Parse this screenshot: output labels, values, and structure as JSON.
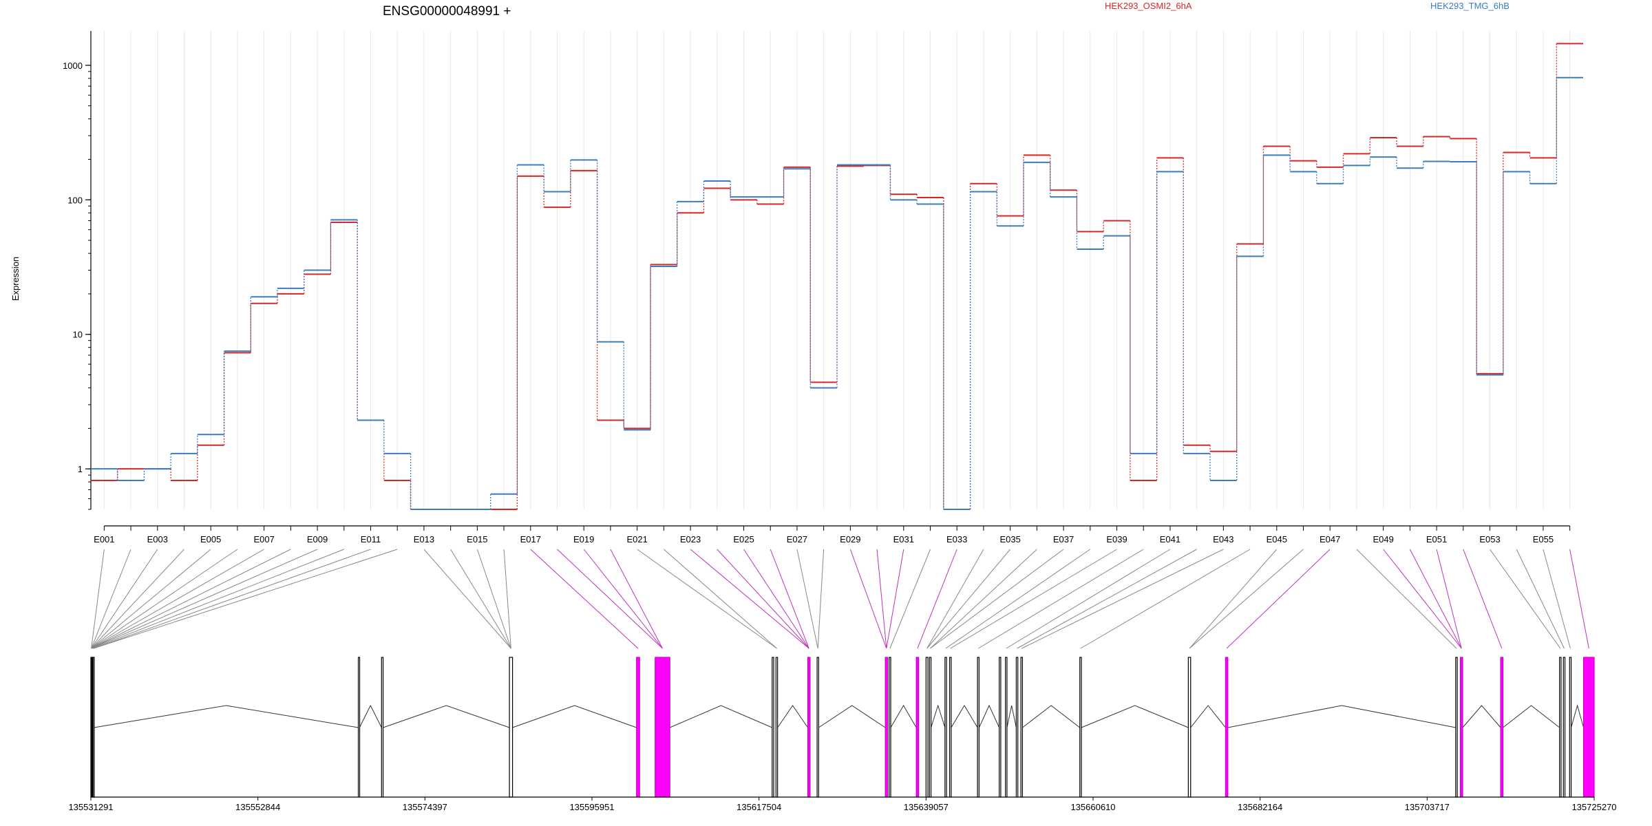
{
  "chart_data": {
    "type": "line",
    "title": "ENSG00000048991 +",
    "ylabel": "Expression",
    "yscale": "log",
    "ylim": [
      0.5,
      1800
    ],
    "yticks": [
      1,
      10,
      100,
      1000
    ],
    "ytick_labels": [
      "1",
      "10",
      "100",
      "1000"
    ],
    "legend_placement": "top",
    "categories": [
      "E001",
      "E002",
      "E003",
      "E004",
      "E005",
      "E006",
      "E007",
      "E008",
      "E009",
      "E010",
      "E011",
      "E012",
      "E013",
      "E014",
      "E015",
      "E016",
      "E017",
      "E018",
      "E019",
      "E020",
      "E021",
      "E022",
      "E023",
      "E024",
      "E025",
      "E026",
      "E027",
      "E028",
      "E029",
      "E030",
      "E031",
      "E032",
      "E033",
      "E034",
      "E035",
      "E036",
      "E037",
      "E038",
      "E039",
      "E040",
      "E041",
      "E042",
      "E043",
      "E044",
      "E045",
      "E046",
      "E047",
      "E048",
      "E049",
      "E050",
      "E051",
      "E052",
      "E053",
      "E054",
      "E055",
      "E056"
    ],
    "xtick_labels": [
      "E001",
      "E003",
      "E005",
      "E007",
      "E009",
      "E011",
      "E013",
      "E015",
      "E017",
      "E019",
      "E021",
      "E023",
      "E025",
      "E027",
      "E029",
      "E031",
      "E033",
      "E035",
      "E037",
      "E039",
      "E041",
      "E043",
      "E045",
      "E047",
      "E049",
      "E051",
      "E053",
      "E055"
    ],
    "series": [
      {
        "name": "HEK293_OSMI2_6hA",
        "color": "#d62728",
        "values": [
          0.82,
          1.0,
          1.0,
          0.82,
          1.5,
          7.3,
          17,
          20,
          28,
          68,
          2.3,
          0.82,
          0.5,
          0.5,
          0.5,
          0.5,
          150,
          88,
          165,
          2.3,
          2.0,
          33,
          80,
          122,
          100,
          93,
          175,
          4.4,
          178,
          180,
          110,
          104,
          0.5,
          132,
          76,
          215,
          118,
          58,
          70,
          0.82,
          205,
          1.5,
          1.35,
          47,
          250,
          195,
          175,
          220,
          290,
          250,
          295,
          285,
          5.1,
          225,
          205,
          1450
        ]
      },
      {
        "name": "HEK293_TMG_6hB",
        "color": "#3a7dbf",
        "values": [
          1.0,
          0.82,
          1.0,
          1.3,
          1.8,
          7.5,
          19,
          22,
          30,
          71,
          2.3,
          1.3,
          0.5,
          0.5,
          0.5,
          0.65,
          182,
          115,
          198,
          8.8,
          1.95,
          32,
          97,
          138,
          105,
          105,
          170,
          4.0,
          182,
          182,
          100,
          93,
          0.5,
          115,
          64,
          190,
          105,
          43,
          54,
          1.3,
          162,
          1.3,
          0.82,
          38,
          215,
          162,
          132,
          180,
          208,
          172,
          193,
          192,
          5.0,
          162,
          132,
          810
        ]
      }
    ],
    "genome_ticks": [
      "135531291",
      "135552844",
      "135574397",
      "135595951",
      "135617504",
      "135639057",
      "135660610",
      "135682164",
      "135703717",
      "135725270"
    ],
    "gene_model": {
      "coord_range": [
        135531291,
        135725270
      ],
      "exon_bins": [
        {
          "s": 135531291,
          "e": 135531400,
          "d": 0
        },
        {
          "s": 135531400,
          "e": 135531550,
          "d": 0
        },
        {
          "s": 135531550,
          "e": 135531700,
          "d": 0
        },
        {
          "s": 135565800,
          "e": 135565950,
          "d": 0
        },
        {
          "s": 135568800,
          "e": 135569000,
          "d": 0
        },
        {
          "s": 135585300,
          "e": 135585700,
          "d": 0
        },
        {
          "s": 135601700,
          "e": 135602100,
          "d": 1
        },
        {
          "s": 135604100,
          "e": 135606000,
          "d": 1
        },
        {
          "s": 135619200,
          "e": 135619400,
          "d": 0
        },
        {
          "s": 135619700,
          "e": 135619900,
          "d": 0
        },
        {
          "s": 135623800,
          "e": 135624100,
          "d": 1
        },
        {
          "s": 135625000,
          "e": 135625200,
          "d": 0
        },
        {
          "s": 135633800,
          "e": 135634100,
          "d": 1
        },
        {
          "s": 135634300,
          "e": 135634500,
          "d": 0
        },
        {
          "s": 135637800,
          "e": 135638100,
          "d": 1
        },
        {
          "s": 135639057,
          "e": 135639300,
          "d": 0
        },
        {
          "s": 135639500,
          "e": 135639700,
          "d": 0
        },
        {
          "s": 135641500,
          "e": 135641700,
          "d": 0
        },
        {
          "s": 135642100,
          "e": 135642300,
          "d": 0
        },
        {
          "s": 135645700,
          "e": 135645900,
          "d": 0
        },
        {
          "s": 135648500,
          "e": 135648700,
          "d": 0
        },
        {
          "s": 135649300,
          "e": 135649500,
          "d": 0
        },
        {
          "s": 135650700,
          "e": 135650900,
          "d": 0
        },
        {
          "s": 135651300,
          "e": 135651500,
          "d": 0
        },
        {
          "s": 135658900,
          "e": 135659100,
          "d": 0
        },
        {
          "s": 135672900,
          "e": 135673200,
          "d": 0
        },
        {
          "s": 135677700,
          "e": 135678000,
          "d": 1
        },
        {
          "s": 135707400,
          "e": 135707600,
          "d": 0
        },
        {
          "s": 135708000,
          "e": 135708300,
          "d": 1
        },
        {
          "s": 135713200,
          "e": 135713500,
          "d": 1
        },
        {
          "s": 135720800,
          "e": 135721000,
          "d": 0
        },
        {
          "s": 135721300,
          "e": 135721500,
          "d": 0
        },
        {
          "s": 135722100,
          "e": 135722300,
          "d": 0
        },
        {
          "s": 135723900,
          "e": 135725270,
          "d": 1
        }
      ],
      "bin_for_exon": [
        0,
        0,
        0,
        0,
        0,
        0,
        0,
        0,
        0,
        1,
        2,
        2,
        5,
        5,
        5,
        5,
        6,
        7,
        7,
        7,
        9,
        9,
        10,
        10,
        10,
        10,
        11,
        11,
        12,
        12,
        12,
        13,
        14,
        15,
        15,
        16,
        16,
        17,
        18,
        19,
        21,
        22,
        23,
        24,
        25,
        25,
        26,
        27,
        28,
        28,
        28,
        29,
        30,
        31,
        32,
        33
      ],
      "intron_arcs": [
        {
          "from": 135531700,
          "to": 135565800
        },
        {
          "from": 135565950,
          "to": 135568800
        },
        {
          "from": 135569000,
          "to": 135585300
        },
        {
          "from": 135585700,
          "to": 135601700
        },
        {
          "from": 135606000,
          "to": 135619200
        },
        {
          "from": 135619900,
          "to": 135623800
        },
        {
          "from": 135625200,
          "to": 135633800
        },
        {
          "from": 135634500,
          "to": 135637800
        },
        {
          "from": 135639700,
          "to": 135641500
        },
        {
          "from": 135642300,
          "to": 135645700
        },
        {
          "from": 135645900,
          "to": 135648500
        },
        {
          "from": 135649500,
          "to": 135650700
        },
        {
          "from": 135651500,
          "to": 135658900
        },
        {
          "from": 135659100,
          "to": 135672900
        },
        {
          "from": 135673200,
          "to": 135677700
        },
        {
          "from": 135678000,
          "to": 135707400
        },
        {
          "from": 135708300,
          "to": 135713200
        },
        {
          "from": 135713500,
          "to": 135720800
        },
        {
          "from": 135722300,
          "to": 135723900
        }
      ],
      "colors": {
        "constitutive": "#000000",
        "differential": "#cc00cc",
        "diff_fill": "#ff00ff",
        "line_const": "#888888",
        "line_diff": "#bb33bb"
      }
    }
  }
}
